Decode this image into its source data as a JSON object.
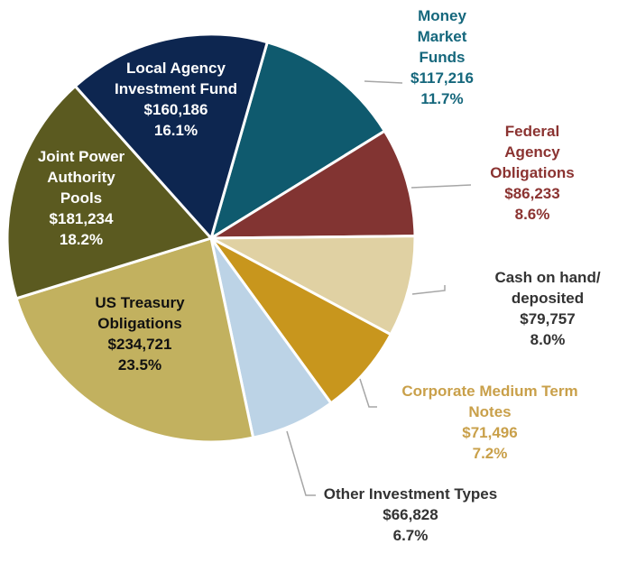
{
  "chart_data": {
    "type": "pie",
    "categories": [
      "Money Market Funds",
      "Federal Agency Obligations",
      "Cash on hand/ deposited",
      "Corporate Medium Term Notes",
      "Other Investment Types",
      "US Treasury Obligations",
      "Joint Power Authority Pools",
      "Local Agency Investment Fund"
    ],
    "values": [
      117216,
      86233,
      79757,
      71496,
      66828,
      234721,
      181234,
      160186
    ],
    "value_labels": [
      "$117,216",
      "$86,233",
      "$79,757",
      "$71,496",
      "$66,828",
      "$234,721",
      "$181,234",
      "$160,186"
    ],
    "percentages": [
      11.7,
      8.6,
      8.0,
      7.2,
      6.7,
      23.5,
      18.2,
      16.1
    ],
    "percentage_labels": [
      "11.7%",
      "8.6%",
      "8.0%",
      "7.2%",
      "6.7%",
      "23.5%",
      "18.2%",
      "16.1%"
    ],
    "colors": [
      "#0f5a6e",
      "#823432",
      "#e0d1a3",
      "#c8961d",
      "#bcd3e6",
      "#c2b15f",
      "#5b5a20",
      "#0d2650"
    ]
  }
}
